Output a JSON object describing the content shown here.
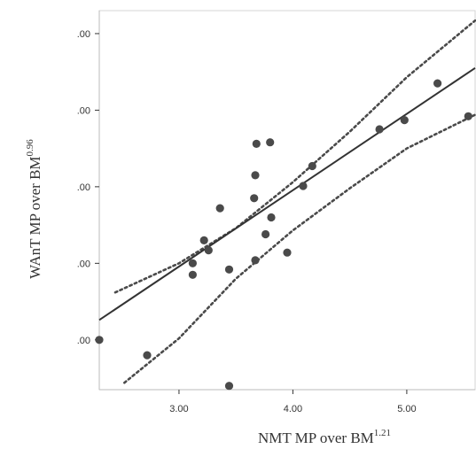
{
  "chart_data": {
    "type": "scatter",
    "title": "",
    "xlabel": "NMT MP over BM",
    "xlabel_superscript": "1.21",
    "ylabel": "WAnT MP over BM",
    "ylabel_superscript": "0.96",
    "x_tick_labels": [
      "3.00",
      "4.00",
      "5.00"
    ],
    "x_ticks": [
      3,
      4,
      5
    ],
    "y_tick_labels": [
      ".00",
      ".00",
      ".00",
      ".00",
      ".00"
    ],
    "y_ticks": [
      0,
      1,
      2,
      3,
      4
    ],
    "xlim": [
      2.3,
      5.6
    ],
    "ylim": [
      -0.65,
      4.3
    ],
    "grid": false,
    "points": [
      {
        "x": 2.3,
        "y": 0.0
      },
      {
        "x": 2.72,
        "y": -0.2
      },
      {
        "x": 3.12,
        "y": 1.0
      },
      {
        "x": 3.12,
        "y": 0.85
      },
      {
        "x": 3.22,
        "y": 1.3
      },
      {
        "x": 3.26,
        "y": 1.17
      },
      {
        "x": 3.36,
        "y": 1.72
      },
      {
        "x": 3.44,
        "y": 0.92
      },
      {
        "x": 3.44,
        "y": -0.6
      },
      {
        "x": 3.66,
        "y": 1.85
      },
      {
        "x": 3.67,
        "y": 2.15
      },
      {
        "x": 3.67,
        "y": 1.04
      },
      {
        "x": 3.68,
        "y": 2.56
      },
      {
        "x": 3.76,
        "y": 1.38
      },
      {
        "x": 3.8,
        "y": 2.58
      },
      {
        "x": 3.81,
        "y": 1.6
      },
      {
        "x": 3.95,
        "y": 1.14
      },
      {
        "x": 4.09,
        "y": 2.01
      },
      {
        "x": 4.17,
        "y": 2.27
      },
      {
        "x": 4.76,
        "y": 2.75
      },
      {
        "x": 4.98,
        "y": 2.87
      },
      {
        "x": 5.27,
        "y": 3.35
      },
      {
        "x": 5.54,
        "y": 2.92
      }
    ],
    "fit_line": {
      "x": [
        2.3,
        5.6
      ],
      "y": [
        0.26,
        3.55
      ]
    },
    "confidence_bands": {
      "upper": [
        {
          "x": 2.44,
          "y": 0.62
        },
        {
          "x": 3.0,
          "y": 1.0
        },
        {
          "x": 3.5,
          "y": 1.46
        },
        {
          "x": 4.0,
          "y": 2.06
        },
        {
          "x": 4.5,
          "y": 2.72
        },
        {
          "x": 5.0,
          "y": 3.43
        },
        {
          "x": 5.6,
          "y": 4.17
        }
      ],
      "lower": [
        {
          "x": 2.52,
          "y": -0.56
        },
        {
          "x": 3.0,
          "y": 0.02
        },
        {
          "x": 3.5,
          "y": 0.8
        },
        {
          "x": 4.0,
          "y": 1.43
        },
        {
          "x": 4.5,
          "y": 1.98
        },
        {
          "x": 5.0,
          "y": 2.5
        },
        {
          "x": 5.6,
          "y": 2.94
        }
      ]
    },
    "colors": {
      "points": "#4a4a4a",
      "line": "#333333",
      "band": "#4a4a4a",
      "frame": "#d4d4d4"
    }
  }
}
